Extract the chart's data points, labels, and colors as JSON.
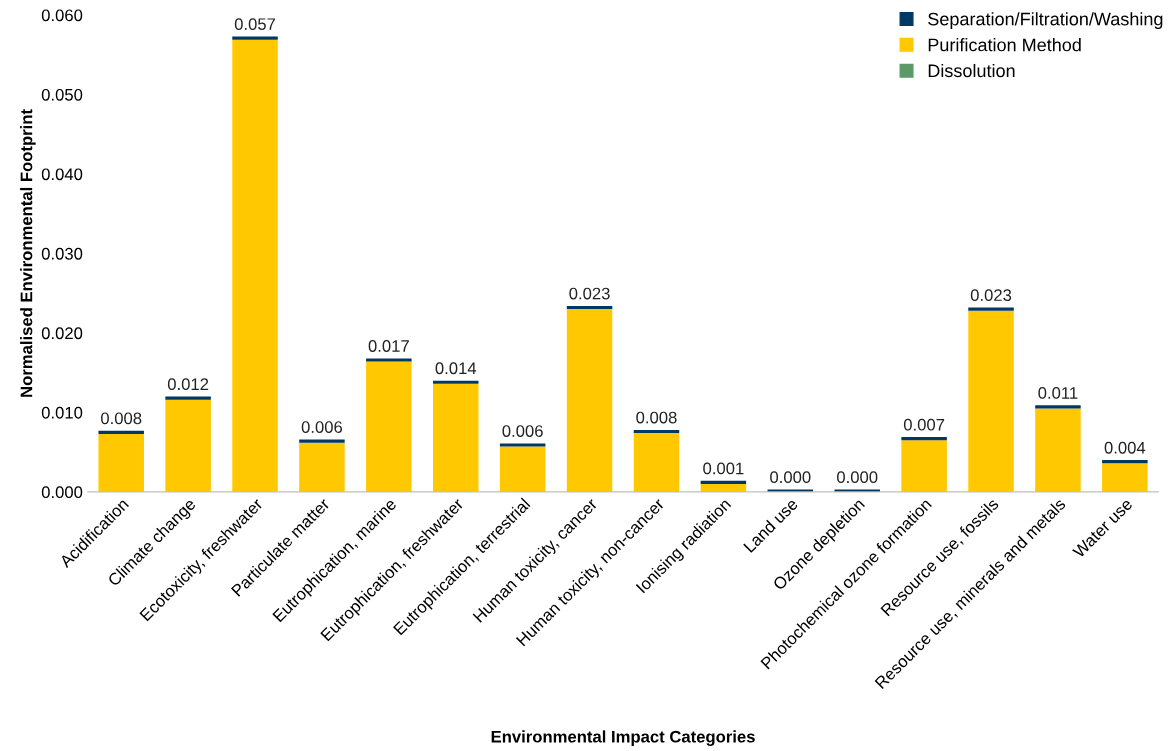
{
  "chart_data": {
    "type": "bar",
    "stacked": true,
    "xlabel": "Environmental Impact Categories",
    "ylabel": "Normalised Environmental Footprint",
    "categories": [
      "Acidification",
      "Climate change",
      "Ecotoxicity, freshwater",
      "Particulate matter",
      "Eutrophication, marine",
      "Eutrophication, freshwater",
      "Eutrophication, terrestrial",
      "Human toxicity, cancer",
      "Human toxicity, non-cancer",
      "Ionising radiation",
      "Land use",
      "Ozone depletion",
      "Photochemical ozone formation",
      "Resource use, fossils",
      "Resource use, minerals and metals",
      "Water use"
    ],
    "series": [
      {
        "name": "Dissolution",
        "color": "#5b9a68",
        "values": [
          0,
          0,
          0,
          0,
          0,
          0,
          0,
          0,
          0,
          0,
          0,
          0,
          0,
          0,
          0,
          0
        ]
      },
      {
        "name": "Purification Method",
        "color": "#ffc800",
        "values": [
          0.0073,
          0.0116,
          0.0569,
          0.0062,
          0.0164,
          0.0136,
          0.0057,
          0.023,
          0.0074,
          0.001,
          null,
          null,
          0.0065,
          0.0228,
          0.0105,
          0.0036
        ]
      },
      {
        "name": "Separation/Filtration/Washing",
        "color": "#003865",
        "values": [
          0.0004,
          0.0004,
          0.0004,
          0.0004,
          0.0004,
          0.0004,
          0.0004,
          0.0004,
          0.0004,
          0.0004,
          0.0003,
          0.0003,
          0.0004,
          0.0004,
          0.0004,
          0.0004
        ]
      }
    ],
    "totals": [
      "0.008",
      "0.012",
      "0.057",
      "0.006",
      "0.017",
      "0.014",
      "0.006",
      "0.023",
      "0.008",
      "0.001",
      "0.000",
      "0.000",
      "0.007",
      "0.023",
      "0.011",
      "0.004"
    ],
    "ylim": [
      0,
      0.06
    ],
    "yticks": [
      {
        "value": 0,
        "label": "0.000"
      },
      {
        "value": 0.01,
        "label": "0.010"
      },
      {
        "value": 0.02,
        "label": "0.020"
      },
      {
        "value": 0.03,
        "label": "0.030"
      },
      {
        "value": 0.04,
        "label": "0.040"
      },
      {
        "value": 0.05,
        "label": "0.050"
      },
      {
        "value": 0.06,
        "label": "0.060"
      }
    ],
    "grid": false,
    "legend": "top right"
  }
}
